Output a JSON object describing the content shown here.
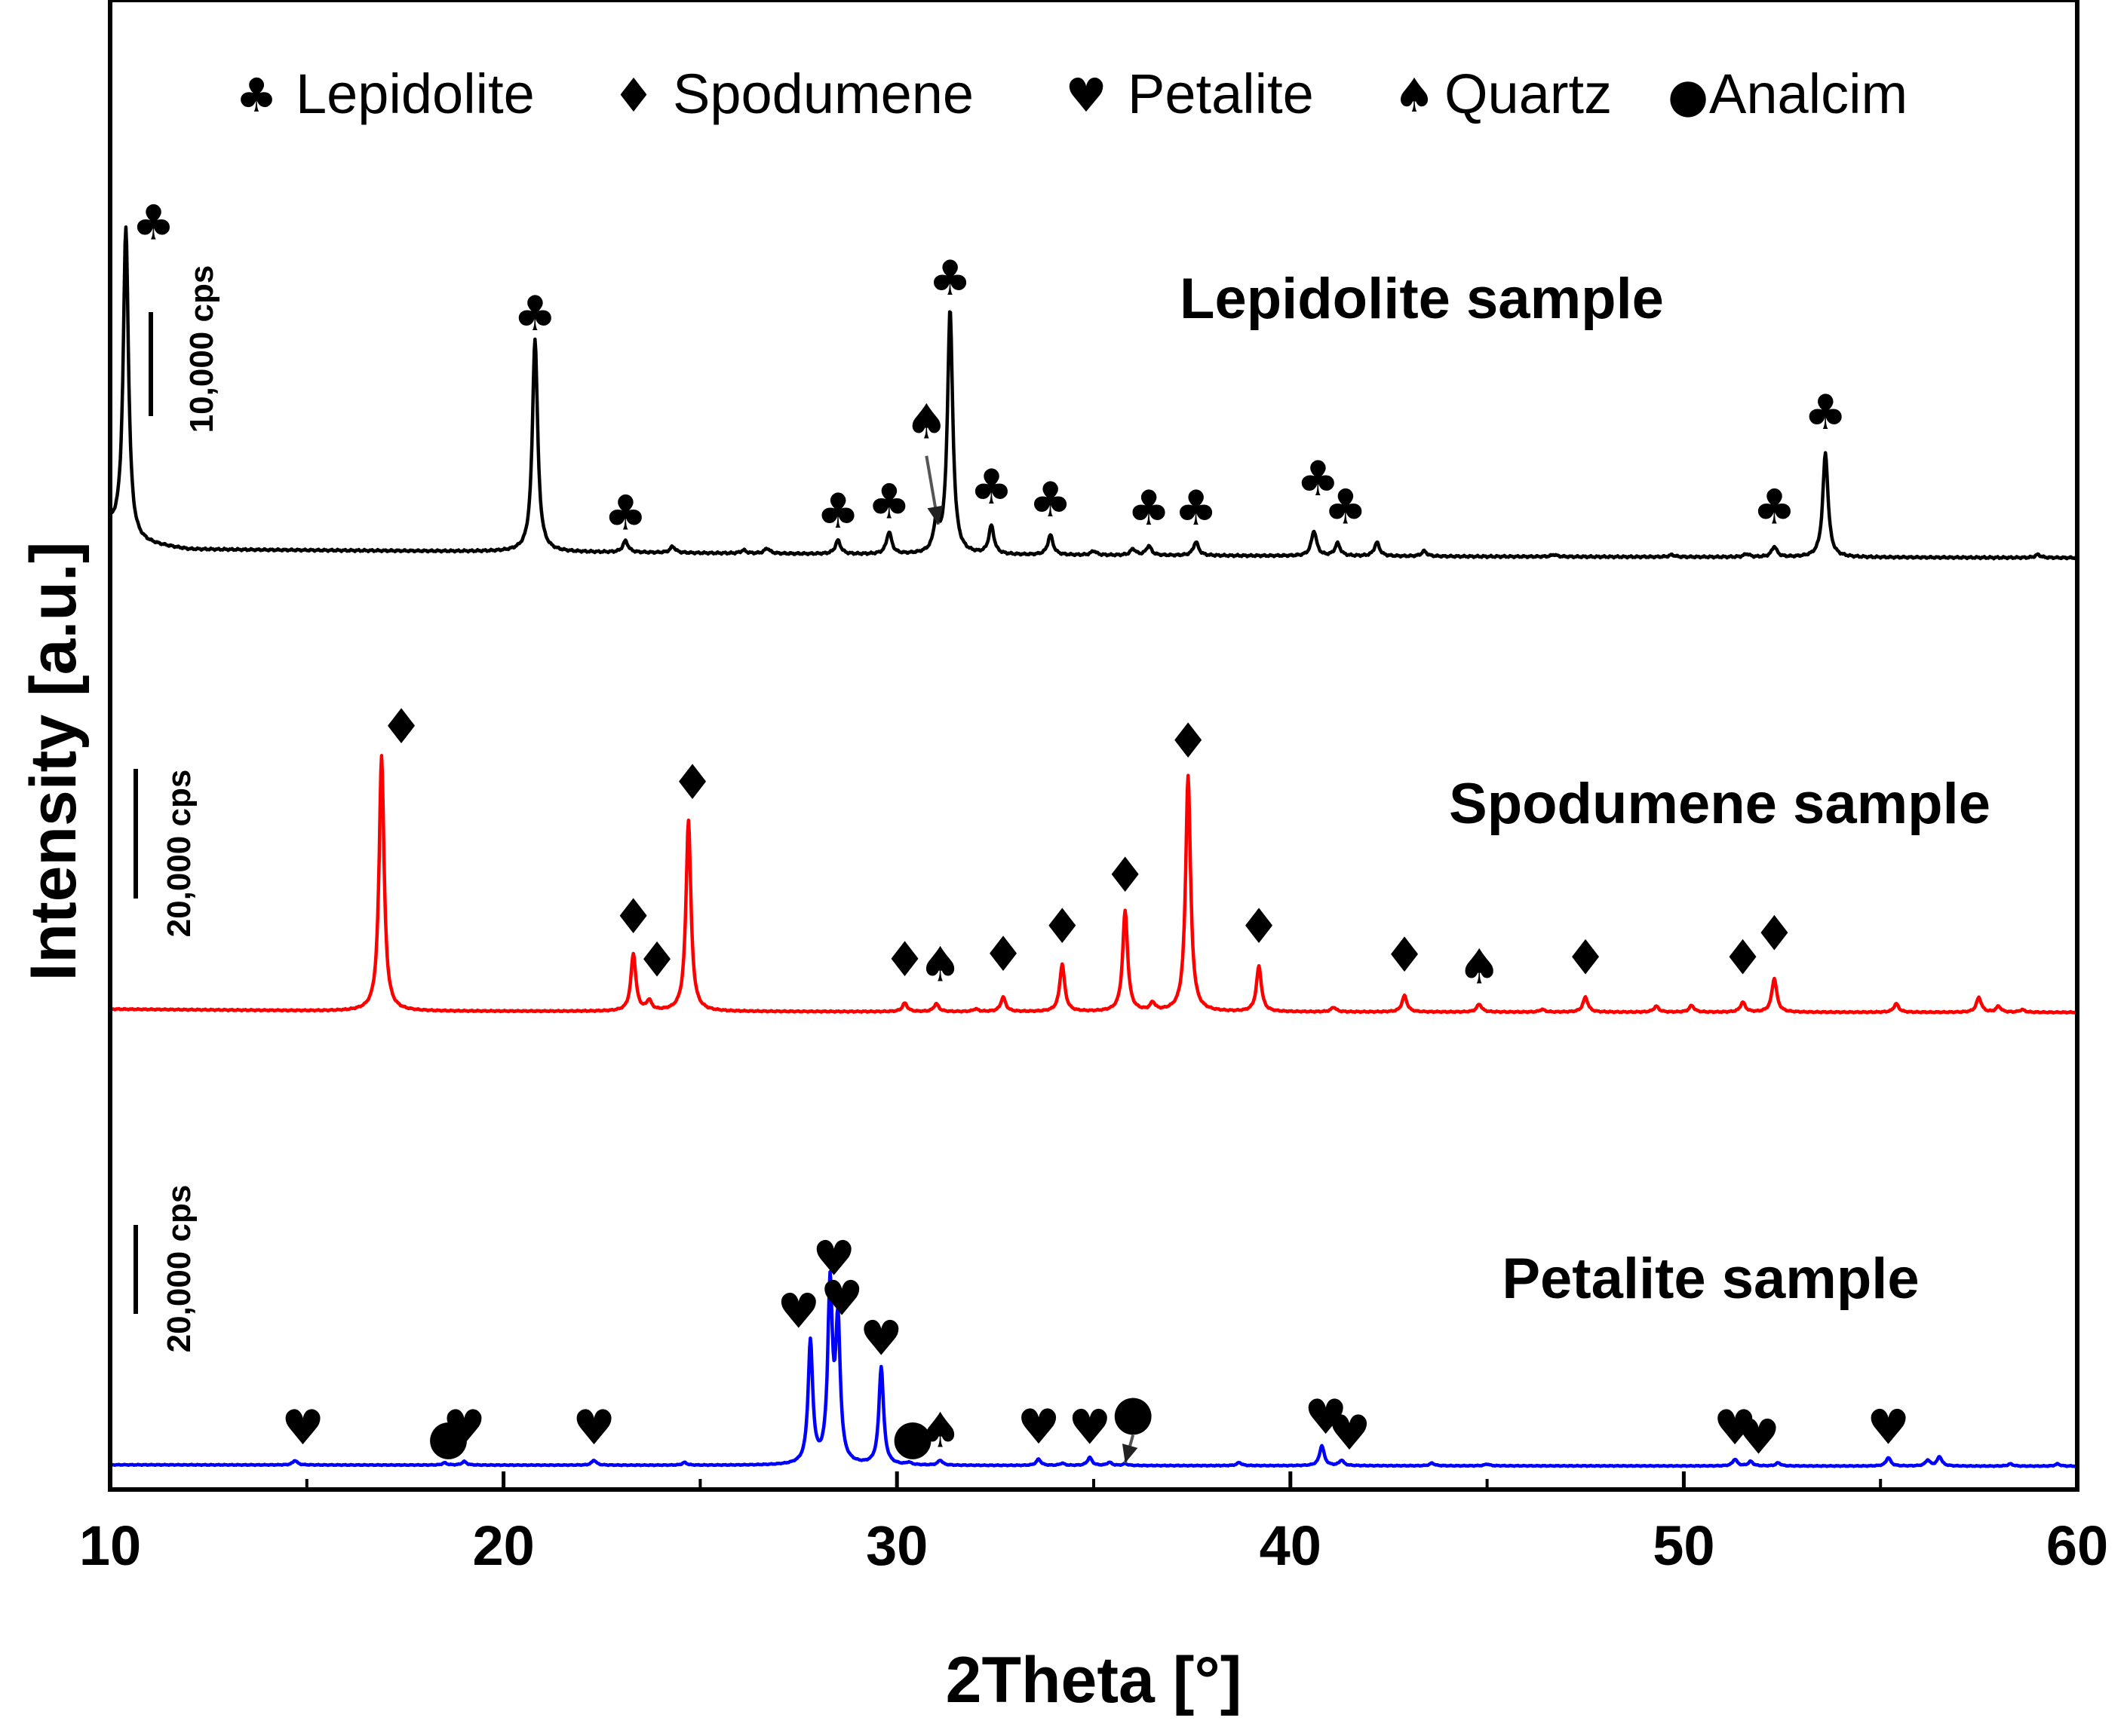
{
  "chart_data": {
    "type": "line",
    "xlabel": "2Theta [°]",
    "ylabel": "Intensity [a.u.]",
    "xlim": [
      10,
      60
    ],
    "xticks": [
      "10",
      "20",
      "30",
      "40",
      "50",
      "60"
    ],
    "legend": [
      {
        "symbol": "♣",
        "label": "Lepidolite"
      },
      {
        "symbol": "♦",
        "label": "Spodumene"
      },
      {
        "symbol": "♥",
        "label": "Petalite"
      },
      {
        "symbol": "♠",
        "label": "Quartz"
      },
      {
        "symbol": "●",
        "label": "Analcim"
      }
    ],
    "series": [
      {
        "name": "Lepidolite sample",
        "color": "#000000",
        "scale_bar": "10,000 cps",
        "scale_counts": 10000,
        "baseline_counts": [
          [
            10,
            3000
          ],
          [
            10.5,
            1500
          ],
          [
            12,
            800
          ],
          [
            20,
            600
          ],
          [
            30,
            300
          ],
          [
            45,
            120
          ],
          [
            60,
            0
          ]
        ],
        "peaks": [
          {
            "x": 10.4,
            "counts": 30000
          },
          {
            "x": 20.8,
            "counts": 20500
          },
          {
            "x": 23.1,
            "counts": 1100
          },
          {
            "x": 24.3,
            "counts": 600
          },
          {
            "x": 26.1,
            "counts": 300
          },
          {
            "x": 26.7,
            "counts": 500
          },
          {
            "x": 28.5,
            "counts": 1300
          },
          {
            "x": 29.8,
            "counts": 2100
          },
          {
            "x": 31.0,
            "counts": 2800
          },
          {
            "x": 31.35,
            "counts": 23500
          },
          {
            "x": 32.4,
            "counts": 2700
          },
          {
            "x": 33.9,
            "counts": 1900
          },
          {
            "x": 35.0,
            "counts": 400
          },
          {
            "x": 36.0,
            "counts": 600
          },
          {
            "x": 36.4,
            "counts": 900
          },
          {
            "x": 37.6,
            "counts": 1300
          },
          {
            "x": 40.6,
            "counts": 2400
          },
          {
            "x": 41.2,
            "counts": 1200
          },
          {
            "x": 42.2,
            "counts": 1300
          },
          {
            "x": 43.4,
            "counts": 500
          },
          {
            "x": 46.7,
            "counts": 200
          },
          {
            "x": 49.7,
            "counts": 200
          },
          {
            "x": 51.6,
            "counts": 300
          },
          {
            "x": 52.3,
            "counts": 1000
          },
          {
            "x": 53.6,
            "counts": 10000
          },
          {
            "x": 59.0,
            "counts": 300
          }
        ],
        "markers": [
          {
            "x": 11.1,
            "counts": 30600,
            "symbol": "♣"
          },
          {
            "x": 20.8,
            "counts": 21900,
            "symbol": "♣"
          },
          {
            "x": 23.1,
            "counts": 2700,
            "symbol": "♣"
          },
          {
            "x": 28.5,
            "counts": 2900,
            "symbol": "♣"
          },
          {
            "x": 29.8,
            "counts": 3800,
            "symbol": "♣"
          },
          {
            "x": 30.75,
            "counts": 11500,
            "symbol": "♠"
          },
          {
            "x": 31.35,
            "counts": 25300,
            "symbol": "♣"
          },
          {
            "x": 32.4,
            "counts": 5200,
            "symbol": "♣"
          },
          {
            "x": 33.9,
            "counts": 4000,
            "symbol": "♣"
          },
          {
            "x": 36.4,
            "counts": 3200,
            "symbol": "♣"
          },
          {
            "x": 37.6,
            "counts": 3200,
            "symbol": "♣"
          },
          {
            "x": 40.7,
            "counts": 6000,
            "symbol": "♣"
          },
          {
            "x": 41.4,
            "counts": 3300,
            "symbol": "♣"
          },
          {
            "x": 52.3,
            "counts": 3300,
            "symbol": "♣"
          },
          {
            "x": 53.6,
            "counts": 12400,
            "symbol": "♣"
          }
        ]
      },
      {
        "name": "Spodumene sample",
        "color": "#ff0000",
        "scale_bar": "20,000 cps",
        "scale_counts": 20000,
        "baseline_counts": [
          [
            10,
            500
          ],
          [
            16,
            200
          ],
          [
            30,
            100
          ],
          [
            60,
            0
          ]
        ],
        "peaks": [
          {
            "x": 16.9,
            "counts": 39500
          },
          {
            "x": 23.3,
            "counts": 8800
          },
          {
            "x": 23.7,
            "counts": 1500
          },
          {
            "x": 24.7,
            "counts": 29500
          },
          {
            "x": 30.2,
            "counts": 1300
          },
          {
            "x": 31.0,
            "counts": 1200
          },
          {
            "x": 32.0,
            "counts": 400
          },
          {
            "x": 32.7,
            "counts": 2200
          },
          {
            "x": 34.2,
            "counts": 7300
          },
          {
            "x": 35.8,
            "counts": 15500
          },
          {
            "x": 36.5,
            "counts": 1200
          },
          {
            "x": 37.4,
            "counts": 36500
          },
          {
            "x": 39.2,
            "counts": 7000
          },
          {
            "x": 41.1,
            "counts": 700
          },
          {
            "x": 42.9,
            "counts": 2500
          },
          {
            "x": 44.8,
            "counts": 1200
          },
          {
            "x": 46.4,
            "counts": 400
          },
          {
            "x": 47.5,
            "counts": 2300
          },
          {
            "x": 49.3,
            "counts": 900
          },
          {
            "x": 50.2,
            "counts": 1000
          },
          {
            "x": 51.5,
            "counts": 1500
          },
          {
            "x": 52.3,
            "counts": 5200
          },
          {
            "x": 55.4,
            "counts": 1300
          },
          {
            "x": 57.5,
            "counts": 2300
          },
          {
            "x": 58.0,
            "counts": 900
          },
          {
            "x": 58.6,
            "counts": 400
          }
        ],
        "markers": [
          {
            "x": 17.4,
            "counts": 41500,
            "symbol": "♦"
          },
          {
            "x": 23.3,
            "counts": 12200,
            "symbol": "♦"
          },
          {
            "x": 23.9,
            "counts": 5500,
            "symbol": "♦"
          },
          {
            "x": 24.8,
            "counts": 32900,
            "symbol": "♦"
          },
          {
            "x": 30.2,
            "counts": 5600,
            "symbol": "♦"
          },
          {
            "x": 31.1,
            "counts": 4800,
            "symbol": "♠"
          },
          {
            "x": 32.7,
            "counts": 6400,
            "symbol": "♦"
          },
          {
            "x": 34.2,
            "counts": 10700,
            "symbol": "♦"
          },
          {
            "x": 35.8,
            "counts": 18600,
            "symbol": "♦"
          },
          {
            "x": 37.4,
            "counts": 39300,
            "symbol": "♦"
          },
          {
            "x": 39.2,
            "counts": 10700,
            "symbol": "♦"
          },
          {
            "x": 42.9,
            "counts": 6300,
            "symbol": "♦"
          },
          {
            "x": 44.8,
            "counts": 4500,
            "symbol": "♠"
          },
          {
            "x": 47.5,
            "counts": 5900,
            "symbol": "♦"
          },
          {
            "x": 51.5,
            "counts": 5900,
            "symbol": "♦"
          },
          {
            "x": 52.3,
            "counts": 9600,
            "symbol": "♦"
          }
        ]
      },
      {
        "name": "Petalite sample",
        "color": "#0000ff",
        "scale_bar": "20,000 cps",
        "scale_counts": 20000,
        "baseline_counts": [
          [
            10,
            300
          ],
          [
            30,
            150
          ],
          [
            60,
            0
          ]
        ],
        "peaks": [
          {
            "x": 14.7,
            "counts": 1000
          },
          {
            "x": 18.5,
            "counts": 500
          },
          {
            "x": 19.0,
            "counts": 800
          },
          {
            "x": 22.3,
            "counts": 1100
          },
          {
            "x": 24.6,
            "counts": 600
          },
          {
            "x": 27.8,
            "counts": 27500
          },
          {
            "x": 28.3,
            "counts": 39500
          },
          {
            "x": 28.5,
            "counts": 31000
          },
          {
            "x": 29.6,
            "counts": 22000
          },
          {
            "x": 30.3,
            "counts": 500
          },
          {
            "x": 31.1,
            "counts": 1100
          },
          {
            "x": 33.6,
            "counts": 1400
          },
          {
            "x": 34.2,
            "counts": 500
          },
          {
            "x": 34.9,
            "counts": 1800
          },
          {
            "x": 35.4,
            "counts": 700
          },
          {
            "x": 35.8,
            "counts": 400
          },
          {
            "x": 38.7,
            "counts": 700
          },
          {
            "x": 40.8,
            "counts": 4500
          },
          {
            "x": 41.3,
            "counts": 1200
          },
          {
            "x": 43.6,
            "counts": 600
          },
          {
            "x": 45.0,
            "counts": 400
          },
          {
            "x": 51.3,
            "counts": 1500
          },
          {
            "x": 51.7,
            "counts": 1000
          },
          {
            "x": 52.4,
            "counts": 700
          },
          {
            "x": 55.2,
            "counts": 1900
          },
          {
            "x": 56.2,
            "counts": 1300
          },
          {
            "x": 56.5,
            "counts": 2100
          },
          {
            "x": 58.3,
            "counts": 500
          },
          {
            "x": 59.5,
            "counts": 500
          }
        ],
        "markers": [
          {
            "x": 14.9,
            "counts": 4900,
            "symbol": "♥"
          },
          {
            "x": 18.6,
            "counts": 2900,
            "symbol": "●"
          },
          {
            "x": 19.0,
            "counts": 4900,
            "symbol": "♥"
          },
          {
            "x": 22.3,
            "counts": 4900,
            "symbol": "♥"
          },
          {
            "x": 27.5,
            "counts": 31100,
            "symbol": "♥"
          },
          {
            "x": 28.4,
            "counts": 43000,
            "symbol": "♥"
          },
          {
            "x": 28.6,
            "counts": 34000,
            "symbol": "♥"
          },
          {
            "x": 29.6,
            "counts": 25000,
            "symbol": "♥"
          },
          {
            "x": 30.4,
            "counts": 2900,
            "symbol": "●"
          },
          {
            "x": 31.1,
            "counts": 4300,
            "symbol": "♠"
          },
          {
            "x": 33.6,
            "counts": 5100,
            "symbol": "♥"
          },
          {
            "x": 34.9,
            "counts": 5000,
            "symbol": "♥"
          },
          {
            "x": 36.0,
            "counts": 8400,
            "symbol": "●"
          },
          {
            "x": 40.9,
            "counts": 7300,
            "symbol": "♥"
          },
          {
            "x": 41.5,
            "counts": 3700,
            "symbol": "♥"
          },
          {
            "x": 51.3,
            "counts": 4900,
            "symbol": "♥"
          },
          {
            "x": 51.9,
            "counts": 2800,
            "symbol": "♥"
          },
          {
            "x": 55.2,
            "counts": 5000,
            "symbol": "♥"
          }
        ]
      }
    ],
    "annotation_arrows": [
      {
        "series": "Lepidolite sample",
        "from_x": 30.75,
        "from_counts": 9800,
        "to_x": 31.05,
        "to_counts": 3200
      },
      {
        "series": "Petalite sample",
        "from_x": 36.0,
        "from_counts": 7000,
        "to_x": 35.8,
        "to_counts": 700
      }
    ]
  }
}
